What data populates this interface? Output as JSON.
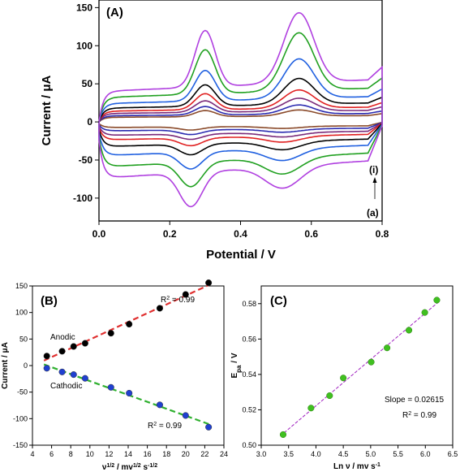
{
  "chart_data": [
    {
      "panel": "(A)",
      "type": "line",
      "xlabel": "Potential / V",
      "ylabel": "Current / μA",
      "xlim": [
        0.0,
        0.8
      ],
      "ylim": [
        -130,
        160
      ],
      "xticks": [
        "0.0",
        "0.2",
        "0.4",
        "0.6",
        "0.8"
      ],
      "yticks": [
        "-100",
        "-50",
        "0",
        "50",
        "100",
        "150"
      ],
      "annotations": [
        "(i)",
        "(a)"
      ],
      "series": [
        {
          "color": "#8a4a2a",
          "oxPeak": 14,
          "oxShoulder": 8,
          "anodicBase": 6,
          "cathodicBase": -5,
          "redPeak": -9
        },
        {
          "color": "#2b2bb0",
          "oxPeak": 20,
          "oxShoulder": 11,
          "anodicBase": 8,
          "cathodicBase": -8,
          "redPeak": -14
        },
        {
          "color": "#7a2a7a",
          "oxPeak": 28,
          "oxShoulder": 15,
          "anodicBase": 11,
          "cathodicBase": -12,
          "redPeak": -19
        },
        {
          "color": "#e02020",
          "oxPeak": 38,
          "oxShoulder": 21,
          "anodicBase": 14,
          "cathodicBase": -16,
          "redPeak": -26
        },
        {
          "color": "#000000",
          "oxPeak": 52,
          "oxShoulder": 28,
          "anodicBase": 18,
          "cathodicBase": -22,
          "redPeak": -36
        },
        {
          "color": "#2060e0",
          "oxPeak": 76,
          "oxShoulder": 40,
          "anodicBase": 24,
          "cathodicBase": -30,
          "redPeak": -52
        },
        {
          "color": "#20a020",
          "oxPeak": 108,
          "oxShoulder": 58,
          "anodicBase": 32,
          "cathodicBase": -40,
          "redPeak": -72
        },
        {
          "color": "#b040e0",
          "oxPeak": 132,
          "oxShoulder": 74,
          "anodicBase": 40,
          "cathodicBase": -50,
          "redPeak": -95
        }
      ]
    },
    {
      "panel": "(B)",
      "type": "scatter",
      "xlabel": "ν1/2 / mV1/2 s-1/2",
      "ylabel": "Current / μA",
      "xlim": [
        4,
        24
      ],
      "ylim": [
        -150,
        150
      ],
      "xticks": [
        "4",
        "6",
        "8",
        "10",
        "12",
        "14",
        "16",
        "18",
        "20",
        "22",
        "24"
      ],
      "yticks": [
        "-150",
        "-100",
        "-50",
        "0",
        "50",
        "100",
        "150"
      ],
      "series": [
        {
          "name": "Anodic",
          "r2": "R2 = 0.99",
          "color": "#000000",
          "fit_color": "#e03030",
          "x": [
            5.5,
            7.1,
            8.3,
            9.5,
            12.2,
            14.1,
            17.3,
            20.0,
            22.4
          ],
          "y": [
            18,
            27,
            36,
            42,
            61,
            78,
            108,
            134,
            156
          ]
        },
        {
          "name": "Cathodic",
          "r2": "R2 = 0.99",
          "color": "#2040d0",
          "fit_color": "#30b030",
          "x": [
            5.5,
            7.1,
            8.3,
            9.5,
            12.2,
            14.1,
            17.3,
            20.0,
            22.4
          ],
          "y": [
            -5,
            -12,
            -17,
            -24,
            -41,
            -52,
            -74,
            -94,
            -116
          ]
        }
      ]
    },
    {
      "panel": "(C)",
      "type": "scatter",
      "xlabel": "Ln ν / mv s-1",
      "ylabel": "Epa / V",
      "xlim": [
        3.0,
        6.5
      ],
      "ylim": [
        0.5,
        0.59
      ],
      "xticks": [
        "3.0",
        "3.5",
        "4.0",
        "4.5",
        "5.0",
        "5.5",
        "6.0",
        "6.5"
      ],
      "yticks": [
        "0.50",
        "0.52",
        "0.54",
        "0.56",
        "0.58"
      ],
      "slope_label": "Slope = 0.02615",
      "r2": "R2 = 0.99",
      "color": "#40c020",
      "fit_color": "#a020c0",
      "x": [
        3.4,
        3.91,
        4.25,
        4.5,
        5.01,
        5.3,
        5.7,
        5.99,
        6.21
      ],
      "y": [
        0.506,
        0.521,
        0.528,
        0.538,
        0.547,
        0.555,
        0.565,
        0.575,
        0.582
      ]
    }
  ],
  "text": {
    "a_label": "(A)",
    "a_xlabel": "Potential / V",
    "a_ylabel": "Current / μA",
    "a_ann_i": "(i)",
    "a_ann_a": "(a)",
    "b_label": "(B)",
    "b_ylabel": "Current / μA",
    "b_anodic": "Anodic",
    "b_cathodic": "Cathodic",
    "b_r2_top": "R",
    "b_r2_bottom": "R",
    "c_label": "(C)",
    "c_slope": "Slope = 0.02615"
  }
}
